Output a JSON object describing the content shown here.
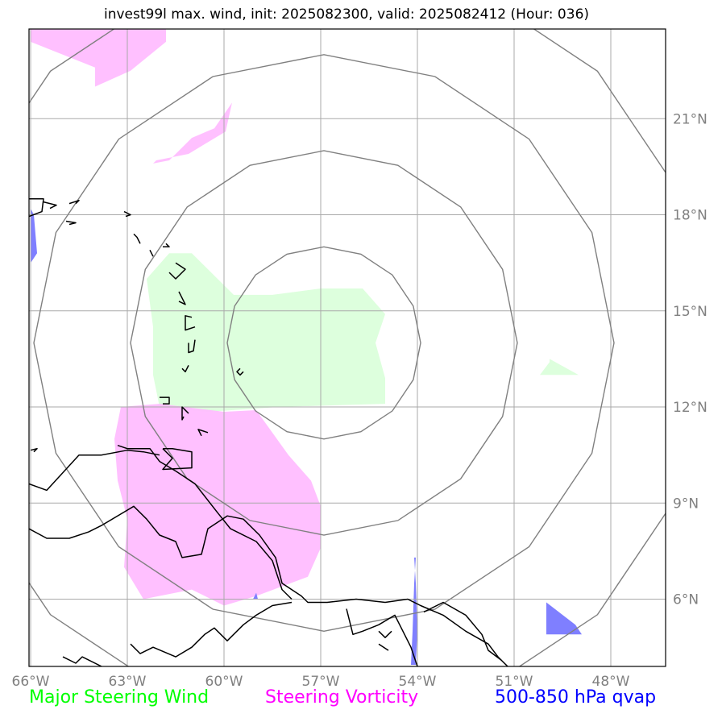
{
  "title": "invest99l max. wind, init: 2025082300, valid: 2025082412 (Hour: 036)",
  "map": {
    "lon_range": [
      -66.05,
      -46.3
    ],
    "lat_range": [
      3.9,
      23.8
    ],
    "lon_ticks": [
      {
        "value": -66,
        "label": "66°W"
      },
      {
        "value": -63,
        "label": "63°W"
      },
      {
        "value": -60,
        "label": "60°W"
      },
      {
        "value": -57,
        "label": "57°W"
      },
      {
        "value": -54,
        "label": "54°W"
      },
      {
        "value": -51,
        "label": "51°W"
      },
      {
        "value": -48,
        "label": "48°W"
      }
    ],
    "lat_ticks": [
      {
        "value": 21,
        "label": "21°N"
      },
      {
        "value": 18,
        "label": "18°N"
      },
      {
        "value": 15,
        "label": "15°N"
      },
      {
        "value": 12,
        "label": "12°N"
      },
      {
        "value": 9,
        "label": "9°N"
      },
      {
        "value": 6,
        "label": "6°N"
      }
    ],
    "storm_center": {
      "lon": -56.9,
      "lat": 14.0
    },
    "range_rings_deg": [
      3,
      6,
      9,
      12
    ],
    "colors": {
      "grid": "#a9a9a9",
      "rings": "#808080",
      "coast": "#000000",
      "steering_wind": "#ddffdd",
      "steering_vorticity": "#ffbbff",
      "qvap": "#7f7fff",
      "overlap": "#d6b5dd"
    }
  },
  "fields": {
    "steering_wind": [
      [
        [
          -61.0,
          16.8
        ],
        [
          -61.7,
          16.8
        ],
        [
          -62.4,
          16.0
        ],
        [
          -62.2,
          14.5
        ],
        [
          -62.2,
          13.0
        ],
        [
          -62.0,
          12.0
        ],
        [
          -60.5,
          11.85
        ],
        [
          -58.3,
          12.0
        ],
        [
          -55.0,
          12.1
        ],
        [
          -55.0,
          12.9
        ],
        [
          -55.3,
          14.0
        ],
        [
          -55.0,
          14.9
        ],
        [
          -55.7,
          15.7
        ],
        [
          -57.0,
          15.7
        ],
        [
          -58.5,
          15.5
        ],
        [
          -59.7,
          15.5
        ]
      ],
      [
        [
          -49.9,
          13.5
        ],
        [
          -49.9,
          13.4
        ],
        [
          -50.2,
          13.0
        ],
        [
          -49.0,
          13.0
        ]
      ]
    ],
    "steering_vorticity": [
      [
        [
          -66.0,
          23.8
        ],
        [
          -61.8,
          23.8
        ],
        [
          -61.8,
          23.4
        ],
        [
          -62.9,
          22.5
        ],
        [
          -64.0,
          22.0
        ],
        [
          -64.0,
          22.6
        ],
        [
          -66.0,
          23.4
        ]
      ],
      [
        [
          -62.2,
          19.6
        ],
        [
          -61.7,
          19.7
        ],
        [
          -61.0,
          20.4
        ],
        [
          -60.3,
          20.7
        ],
        [
          -59.75,
          21.5
        ],
        [
          -59.95,
          20.6
        ],
        [
          -61.1,
          19.9
        ],
        [
          -62.1,
          19.7
        ]
      ],
      [
        [
          -62.0,
          12.1
        ],
        [
          -60.0,
          11.85
        ],
        [
          -59.0,
          11.9
        ],
        [
          -58.0,
          10.5
        ],
        [
          -57.3,
          9.7
        ],
        [
          -57.0,
          8.9
        ],
        [
          -57.0,
          7.6
        ],
        [
          -57.4,
          6.7
        ],
        [
          -59.0,
          6.1
        ],
        [
          -60.0,
          5.8
        ],
        [
          -61.0,
          6.3
        ],
        [
          -62.5,
          6.0
        ],
        [
          -63.1,
          7.0
        ],
        [
          -63.0,
          8.5
        ],
        [
          -63.3,
          9.7
        ],
        [
          -63.4,
          11.0
        ],
        [
          -63.2,
          12.0
        ]
      ]
    ],
    "qvap": [
      [
        [
          -66.0,
          18.2
        ],
        [
          -65.9,
          18.0
        ],
        [
          -65.8,
          16.8
        ],
        [
          -66.0,
          16.5
        ]
      ],
      [
        [
          -54.1,
          7.3
        ],
        [
          -54.05,
          6.5
        ],
        [
          -54.0,
          5.0
        ],
        [
          -54.05,
          3.95
        ],
        [
          -54.2,
          3.95
        ],
        [
          -54.15,
          5.0
        ],
        [
          -54.1,
          6.5
        ],
        [
          -54.05,
          7.3
        ]
      ],
      [
        [
          -50.0,
          5.9
        ],
        [
          -49.1,
          5.2
        ],
        [
          -48.9,
          4.9
        ],
        [
          -49.0,
          4.9
        ],
        [
          -50.0,
          4.9
        ]
      ],
      [
        [
          -59.0,
          6.2
        ],
        [
          -58.95,
          6.0
        ],
        [
          -59.1,
          6.0
        ]
      ]
    ]
  },
  "coastlines": [
    [
      [
        -66.05,
        8.2
      ],
      [
        -65.5,
        7.9
      ],
      [
        -64.8,
        7.9
      ],
      [
        -64.2,
        8.1
      ],
      [
        -63.8,
        8.3
      ],
      [
        -62.8,
        8.9
      ],
      [
        -62.4,
        8.5
      ],
      [
        -62.0,
        8.0
      ],
      [
        -61.5,
        7.8
      ],
      [
        -61.3,
        7.3
      ],
      [
        -60.7,
        7.4
      ],
      [
        -60.5,
        8.2
      ],
      [
        -59.9,
        8.6
      ],
      [
        -59.4,
        8.5
      ],
      [
        -58.9,
        8.0
      ],
      [
        -58.4,
        7.3
      ],
      [
        -58.2,
        6.5
      ],
      [
        -57.6,
        6.1
      ],
      [
        -57.4,
        5.9
      ],
      [
        -56.8,
        5.9
      ],
      [
        -55.9,
        6.0
      ],
      [
        -55.0,
        5.9
      ],
      [
        -54.3,
        6.0
      ],
      [
        -53.9,
        5.8
      ],
      [
        -53.2,
        5.5
      ],
      [
        -52.5,
        5.0
      ],
      [
        -51.8,
        4.6
      ],
      [
        -51.5,
        4.2
      ],
      [
        -51.2,
        3.9
      ]
    ],
    [
      [
        -66.05,
        9.6
      ],
      [
        -65.5,
        9.4
      ],
      [
        -64.5,
        10.5
      ],
      [
        -63.8,
        10.5
      ],
      [
        -63.0,
        10.65
      ],
      [
        -62.5,
        10.6
      ],
      [
        -62.0,
        10.5
      ]
    ],
    [
      [
        -61.9,
        10.7
      ],
      [
        -61.6,
        10.7
      ],
      [
        -61.0,
        10.6
      ],
      [
        -61.0,
        10.1
      ],
      [
        -61.9,
        10.05
      ],
      [
        -61.6,
        10.4
      ],
      [
        -61.9,
        10.7
      ]
    ],
    [
      [
        -63.3,
        10.8
      ],
      [
        -63.0,
        10.7
      ],
      [
        -62.3,
        10.7
      ],
      [
        -62.0,
        10.3
      ],
      [
        -61.5,
        10.0
      ],
      [
        -60.9,
        9.6
      ],
      [
        -60.2,
        8.7
      ],
      [
        -59.8,
        8.2
      ],
      [
        -59.0,
        7.8
      ],
      [
        -58.5,
        7.2
      ],
      [
        -58.2,
        6.3
      ],
      [
        -57.9,
        6.0
      ]
    ],
    [
      [
        -61.25,
        11.7
      ],
      [
        -61.3,
        11.6
      ],
      [
        -61.3,
        12.0
      ],
      [
        -61.1,
        11.8
      ]
    ],
    [
      [
        -60.5,
        11.2
      ],
      [
        -60.8,
        11.3
      ],
      [
        -60.7,
        11.1
      ]
    ],
    [
      [
        -62.0,
        12.3
      ],
      [
        -61.7,
        12.3
      ],
      [
        -61.7,
        12.1
      ],
      [
        -61.9,
        12.1
      ]
    ],
    [
      [
        -61.1,
        13.3
      ],
      [
        -61.2,
        13.1
      ],
      [
        -61.3,
        13.2
      ]
    ],
    [
      [
        -60.9,
        14.1
      ],
      [
        -60.95,
        13.75
      ],
      [
        -61.1,
        13.7
      ],
      [
        -61.1,
        14.0
      ]
    ],
    [
      [
        -59.5,
        13.2
      ],
      [
        -59.6,
        13.1
      ],
      [
        -59.5,
        13.0
      ],
      [
        -59.4,
        13.1
      ]
    ],
    [
      [
        -61.0,
        14.8
      ],
      [
        -61.2,
        14.85
      ],
      [
        -61.2,
        14.4
      ],
      [
        -60.9,
        14.5
      ]
    ],
    [
      [
        -61.4,
        15.6
      ],
      [
        -61.2,
        15.2
      ],
      [
        -61.4,
        15.3
      ]
    ],
    [
      [
        -61.5,
        16.5
      ],
      [
        -61.2,
        16.3
      ],
      [
        -61.5,
        16.0
      ],
      [
        -61.7,
        16.2
      ]
    ],
    [
      [
        -61.8,
        17.1
      ],
      [
        -61.7,
        17.0
      ],
      [
        -61.9,
        17.0
      ]
    ],
    [
      [
        -62.8,
        17.4
      ],
      [
        -62.7,
        17.3
      ],
      [
        -62.6,
        17.1
      ]
    ],
    [
      [
        -62.3,
        16.9
      ],
      [
        -62.2,
        16.7
      ]
    ],
    [
      [
        -63.1,
        18.1
      ],
      [
        -62.9,
        18.0
      ],
      [
        -63.05,
        17.95
      ]
    ],
    [
      [
        -64.8,
        18.35
      ],
      [
        -64.5,
        18.45
      ],
      [
        -64.6,
        18.35
      ]
    ],
    [
      [
        -65.6,
        18.4
      ],
      [
        -65.2,
        18.3
      ],
      [
        -65.4,
        18.2
      ]
    ],
    [
      [
        -66.05,
        18.5
      ],
      [
        -65.6,
        18.5
      ],
      [
        -65.65,
        18.1
      ],
      [
        -66.05,
        17.95
      ]
    ],
    [
      [
        -64.9,
        17.8
      ],
      [
        -64.6,
        17.75
      ],
      [
        -64.8,
        17.7
      ]
    ],
    [
      [
        -66.0,
        10.65
      ],
      [
        -65.8,
        10.7
      ],
      [
        -65.9,
        10.6
      ]
    ],
    [
      [
        -62.9,
        4.6
      ],
      [
        -62.6,
        4.3
      ],
      [
        -62.2,
        4.5
      ],
      [
        -61.5,
        4.2
      ],
      [
        -61.0,
        4.5
      ],
      [
        -60.6,
        4.9
      ],
      [
        -60.3,
        5.1
      ],
      [
        -59.9,
        4.7
      ],
      [
        -59.4,
        5.2
      ],
      [
        -59.0,
        5.5
      ],
      [
        -58.5,
        5.8
      ],
      [
        -57.9,
        5.9
      ]
    ],
    [
      [
        -65.0,
        4.2
      ],
      [
        -64.6,
        4.0
      ],
      [
        -64.4,
        4.2
      ],
      [
        -63.8,
        3.9
      ]
    ],
    [
      [
        -54.0,
        3.9
      ],
      [
        -54.2,
        4.5
      ],
      [
        -54.5,
        5.1
      ],
      [
        -54.7,
        5.5
      ],
      [
        -55.2,
        5.2
      ],
      [
        -55.7,
        5.0
      ],
      [
        -56.0,
        4.9
      ],
      [
        -56.2,
        5.7
      ]
    ],
    [
      [
        -53.8,
        5.6
      ],
      [
        -53.2,
        5.9
      ],
      [
        -52.5,
        5.5
      ],
      [
        -52.0,
        4.9
      ],
      [
        -51.8,
        4.4
      ],
      [
        -51.4,
        4.1
      ]
    ],
    [
      [
        -54.8,
        5.0
      ],
      [
        -55.0,
        4.8
      ],
      [
        -55.2,
        5.0
      ]
    ],
    [
      [
        -55.2,
        4.6
      ],
      [
        -54.9,
        4.4
      ]
    ]
  ],
  "legend": {
    "steering_wind": {
      "label": "Major Steering Wind",
      "color": "#00ff00"
    },
    "steering_vorticity": {
      "label": "Steering Vorticity",
      "color": "#ff00ff"
    },
    "qvap": {
      "label": "500-850 hPa qvap",
      "color": "#0000ff"
    }
  }
}
